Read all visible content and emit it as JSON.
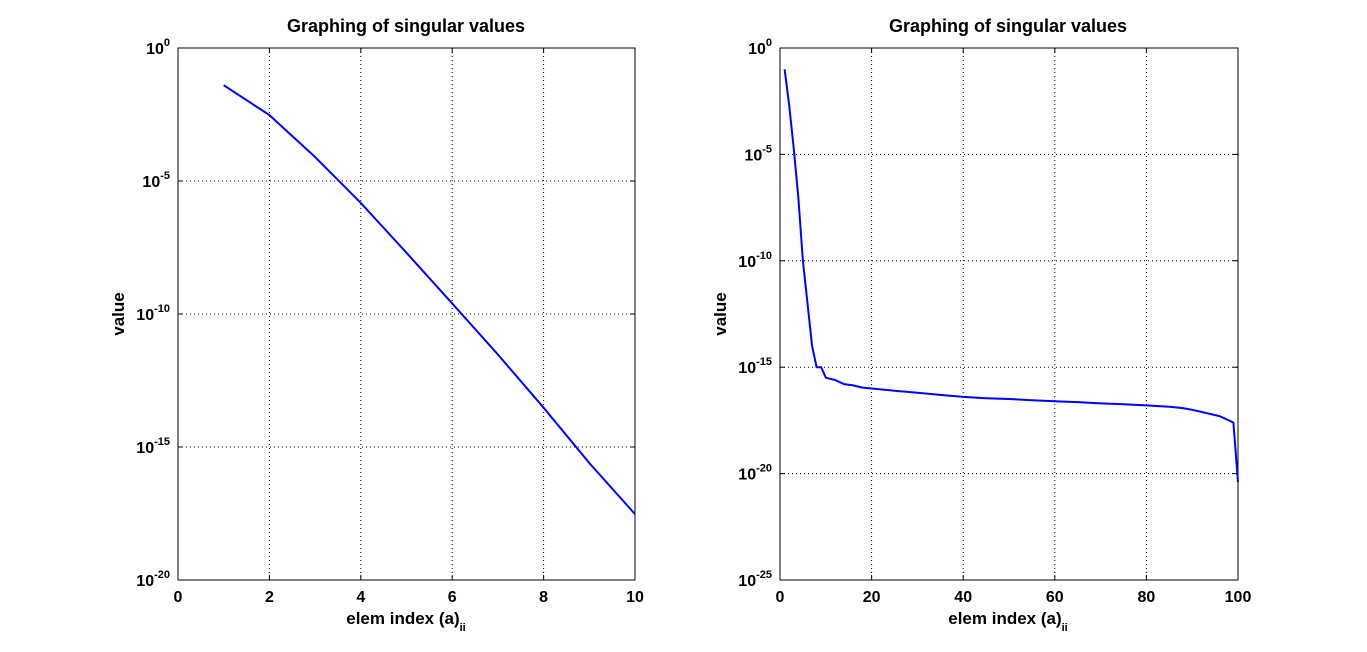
{
  "chart_data": [
    {
      "type": "line",
      "title": "Graphing of singular values",
      "xlabel": "elem index (a)",
      "xlabel_sub": "ii",
      "ylabel": "value",
      "xlim": [
        0,
        10
      ],
      "ylim": [
        1e-20,
        1
      ],
      "yscale": "log",
      "grid": true,
      "xticks": [
        0,
        2,
        4,
        6,
        8,
        10
      ],
      "xtick_labels": [
        "0",
        "2",
        "4",
        "6",
        "8",
        "10"
      ],
      "yticks": [
        -20,
        -15,
        -10,
        -5,
        0
      ],
      "ytick_labels": [
        {
          "base": "10",
          "exp": "-20"
        },
        {
          "base": "10",
          "exp": "-15"
        },
        {
          "base": "10",
          "exp": "-10"
        },
        {
          "base": "10",
          "exp": "-5"
        },
        {
          "base": "10",
          "exp": "0"
        }
      ],
      "series": [
        {
          "color": "#0000ff",
          "x": [
            1,
            2,
            3,
            4,
            5,
            6,
            7,
            8,
            9,
            10
          ],
          "y": [
            0.04,
            0.003,
            8e-05,
            1.5e-06,
            2e-08,
            2.5e-10,
            3e-12,
            3e-14,
            2.5e-16,
            3e-18
          ]
        }
      ]
    },
    {
      "type": "line",
      "title": "Graphing of singular values",
      "xlabel": "elem index (a)",
      "xlabel_sub": "ii",
      "ylabel": "value",
      "xlim": [
        0,
        100
      ],
      "ylim": [
        1e-25,
        1
      ],
      "yscale": "log",
      "grid": true,
      "xticks": [
        0,
        20,
        40,
        60,
        80,
        100
      ],
      "xtick_labels": [
        "0",
        "20",
        "40",
        "60",
        "80",
        "100"
      ],
      "yticks": [
        -25,
        -20,
        -15,
        -10,
        -5,
        0
      ],
      "ytick_labels": [
        {
          "base": "10",
          "exp": "-25"
        },
        {
          "base": "10",
          "exp": "-20"
        },
        {
          "base": "10",
          "exp": "-15"
        },
        {
          "base": "10",
          "exp": "-10"
        },
        {
          "base": "10",
          "exp": "-5"
        },
        {
          "base": "10",
          "exp": "0"
        }
      ],
      "series": [
        {
          "color": "#0000ff",
          "x": [
            1,
            2,
            3,
            4,
            5,
            6,
            7,
            8,
            9,
            10,
            12,
            14,
            16,
            18,
            20,
            25,
            30,
            35,
            40,
            45,
            50,
            55,
            60,
            65,
            70,
            75,
            80,
            85,
            88,
            90,
            92,
            94,
            96,
            98,
            99,
            99.5,
            100
          ],
          "y": [
            0.1,
            0.002,
            2e-05,
            1e-07,
            1e-10,
            1e-12,
            1e-14,
            1e-15,
            1e-15,
            3.2e-16,
            2.5e-16,
            1.6e-16,
            1.4e-16,
            1.1e-16,
            1e-16,
            7.9e-17,
            6.3e-17,
            5e-17,
            4e-17,
            3.5e-17,
            3.2e-17,
            2.8e-17,
            2.5e-17,
            2.3e-17,
            2e-17,
            1.8e-17,
            1.6e-17,
            1.4e-17,
            1.2e-17,
            1e-17,
            7.9e-18,
            6.3e-18,
            5e-18,
            3.2e-18,
            2.5e-18,
            1e-19,
            4e-21
          ]
        }
      ]
    }
  ]
}
